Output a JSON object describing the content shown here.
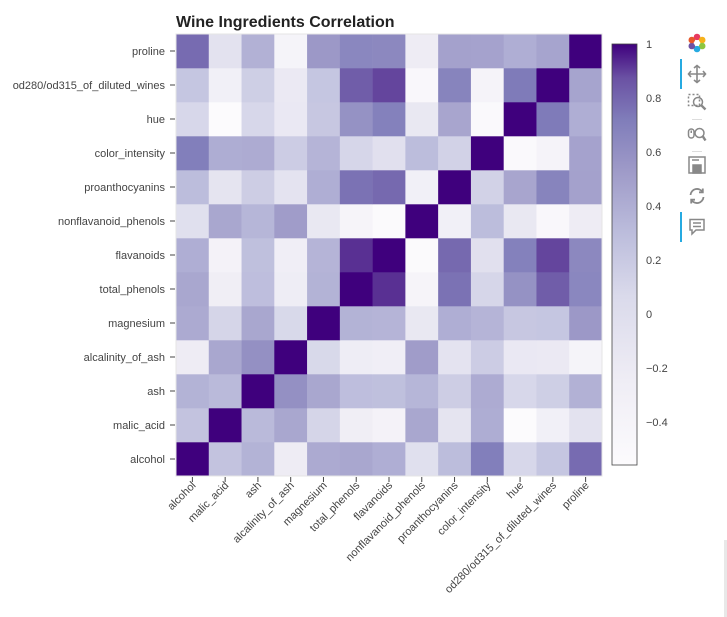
{
  "chart_data": {
    "type": "heatmap",
    "title": "Wine Ingredients Correlation",
    "xlabel": "",
    "ylabel": "",
    "variables": [
      "alcohol",
      "malic_acid",
      "ash",
      "alcalinity_of_ash",
      "magnesium",
      "total_phenols",
      "flavanoids",
      "nonflavanoid_phenols",
      "proanthocyanins",
      "color_intensity",
      "hue",
      "od280/od315_of_diluted_wines",
      "proline"
    ],
    "x_tick_labels": [
      "alcohol",
      "malic_acid",
      "ash",
      "alcalinity_of_ash",
      "magnesium",
      "total_phenols",
      "flavanoids",
      "nonflavanoid_phenols",
      "proanthocyanins",
      "color_intensity",
      "hue",
      "od280/od315_of_diluted_wines",
      "proline"
    ],
    "y_tick_labels_top_to_bottom": [
      "proline",
      "od280/od315_of_diluted_wines",
      "hue",
      "color_intensity",
      "proanthocyanins",
      "nonflavanoid_phenols",
      "flavanoids",
      "total_phenols",
      "magnesium",
      "alcalinity_of_ash",
      "ash",
      "malic_acid",
      "alcohol"
    ],
    "matrix": [
      [
        1.0,
        0.09,
        0.21,
        -0.31,
        0.27,
        0.29,
        0.24,
        -0.16,
        0.14,
        0.55,
        -0.07,
        0.07,
        0.64
      ],
      [
        0.09,
        1.0,
        0.16,
        0.29,
        -0.05,
        -0.34,
        -0.41,
        0.29,
        -0.22,
        0.25,
        -0.56,
        -0.37,
        -0.19
      ],
      [
        0.21,
        0.16,
        1.0,
        0.44,
        0.29,
        0.13,
        0.12,
        0.19,
        0.01,
        0.26,
        -0.07,
        0.0,
        0.22
      ],
      [
        -0.31,
        0.29,
        0.44,
        1.0,
        -0.08,
        -0.32,
        -0.35,
        0.36,
        -0.2,
        0.02,
        -0.27,
        -0.28,
        -0.44
      ],
      [
        0.27,
        -0.05,
        0.29,
        -0.08,
        1.0,
        0.21,
        0.2,
        -0.26,
        0.24,
        0.2,
        0.06,
        0.07,
        0.39
      ],
      [
        0.29,
        -0.34,
        0.13,
        -0.32,
        0.21,
        1.0,
        0.86,
        -0.45,
        0.61,
        -0.06,
        0.43,
        0.7,
        0.5
      ],
      [
        0.24,
        -0.41,
        0.12,
        -0.35,
        0.2,
        0.86,
        1.0,
        -0.54,
        0.65,
        -0.17,
        0.54,
        0.79,
        0.49
      ],
      [
        -0.16,
        0.29,
        0.19,
        0.36,
        -0.26,
        -0.45,
        -0.54,
        1.0,
        -0.37,
        0.14,
        -0.26,
        -0.5,
        -0.31
      ],
      [
        0.14,
        -0.22,
        0.01,
        -0.2,
        0.24,
        0.61,
        0.65,
        -0.37,
        1.0,
        -0.03,
        0.3,
        0.52,
        0.33
      ],
      [
        0.55,
        0.25,
        0.26,
        0.02,
        0.2,
        -0.06,
        -0.17,
        0.14,
        -0.03,
        1.0,
        -0.52,
        -0.43,
        0.32
      ],
      [
        -0.07,
        -0.56,
        -0.07,
        -0.27,
        0.06,
        0.43,
        0.54,
        -0.26,
        0.3,
        -0.52,
        1.0,
        0.57,
        0.24
      ],
      [
        0.07,
        -0.37,
        0.0,
        -0.28,
        0.07,
        0.7,
        0.79,
        -0.5,
        0.52,
        -0.43,
        0.57,
        1.0,
        0.31
      ],
      [
        0.64,
        -0.19,
        0.22,
        -0.44,
        0.39,
        0.5,
        0.49,
        -0.31,
        0.33,
        0.32,
        0.24,
        0.31,
        1.0
      ]
    ],
    "colorbar": {
      "palette": "Purples",
      "low_color": "#fcfbfd",
      "high_color": "#3f007d",
      "range": [
        -0.56,
        1.0
      ],
      "ticks": [
        "1",
        "0.8",
        "0.6",
        "0.4",
        "0.2",
        "0",
        "−0.2",
        "−0.4"
      ],
      "tick_values": [
        1,
        0.8,
        0.6,
        0.4,
        0.2,
        0,
        -0.2,
        -0.4
      ]
    },
    "legend": "colorbar right",
    "grid": false
  },
  "toolbar": {
    "tools": [
      {
        "name": "bokeh-logo-icon",
        "active": false
      },
      {
        "name": "pan-icon",
        "active": true
      },
      {
        "name": "box-zoom-icon",
        "active": false
      },
      {
        "name": "wheel-zoom-icon",
        "active": false
      },
      {
        "name": "save-icon",
        "active": false
      },
      {
        "name": "reset-icon",
        "active": false
      },
      {
        "name": "hover-icon",
        "active": true
      }
    ],
    "accent_color": "#26aae1"
  }
}
